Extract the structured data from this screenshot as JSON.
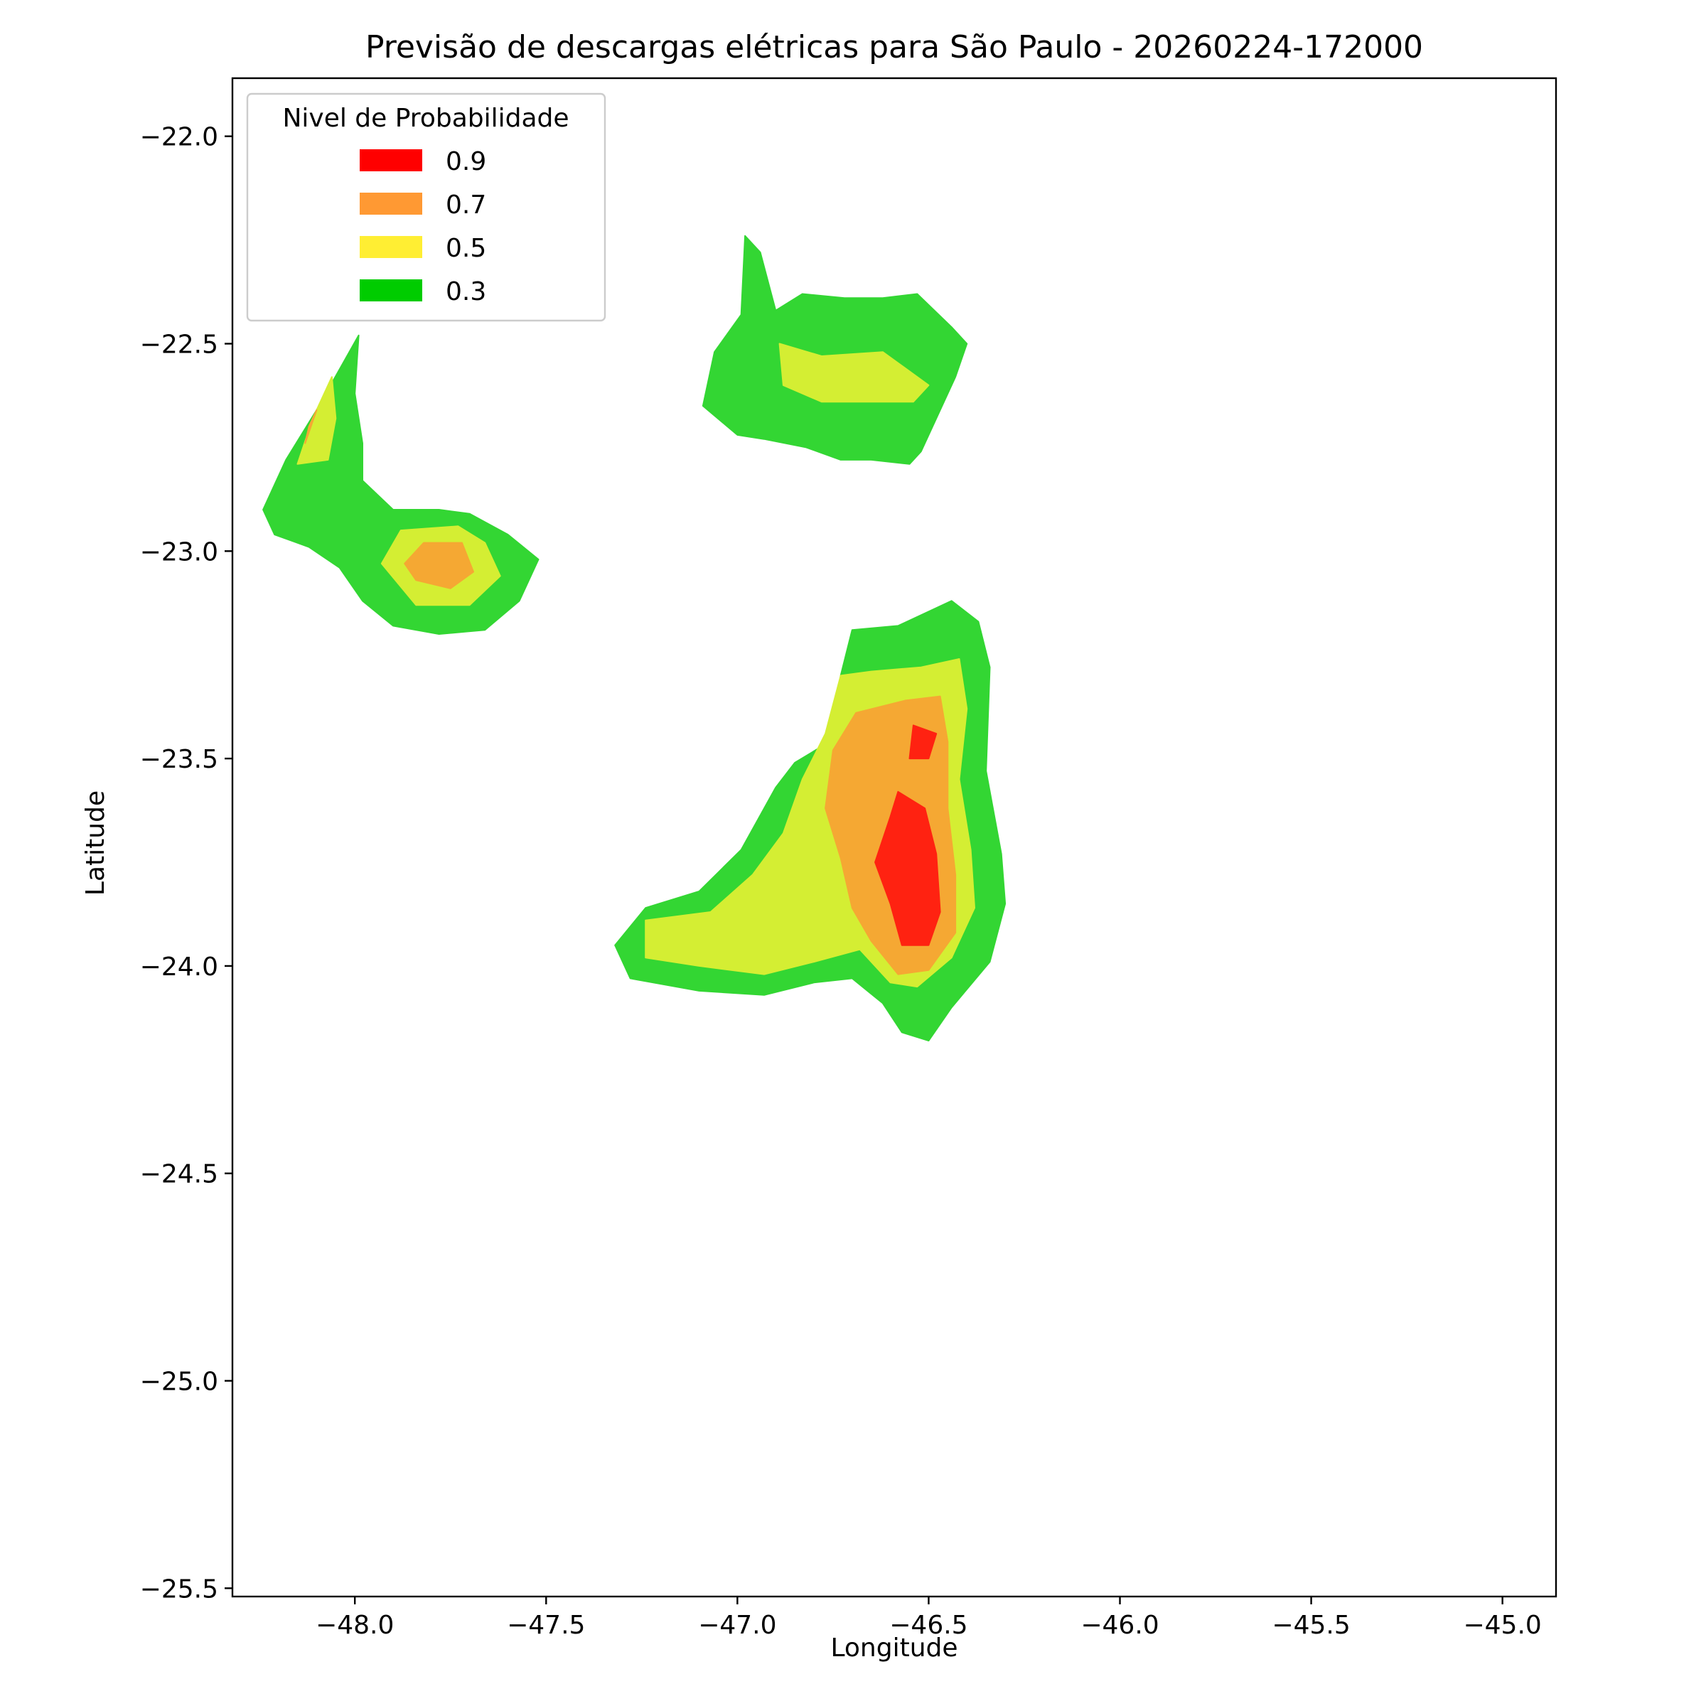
{
  "chart_data": {
    "type": "contour",
    "title": "Previsão de descargas elétricas para São Paulo - 20260224-172000",
    "xlabel": "Longitude",
    "ylabel": "Latitude",
    "xlim": [
      -48.32,
      -44.86
    ],
    "ylim": [
      -25.52,
      -21.86
    ],
    "xticks": [
      -48.0,
      -47.5,
      -47.0,
      -46.5,
      -46.0,
      -45.5,
      -45.0
    ],
    "xtick_labels": [
      "−48.0",
      "−47.5",
      "−47.0",
      "−46.5",
      "−46.0",
      "−45.5",
      "−45.0"
    ],
    "yticks": [
      -22.0,
      -22.5,
      -23.0,
      -23.5,
      -24.0,
      -24.5,
      -25.0,
      -25.5
    ],
    "ytick_labels": [
      "−22.0",
      "−22.5",
      "−23.0",
      "−23.5",
      "−24.0",
      "−24.5",
      "−25.0",
      "−25.5"
    ],
    "grid": false,
    "legend": {
      "title": "Nivel de Probabilidade",
      "placement": "upper-left",
      "entries": [
        {
          "label": "0.9",
          "color": "#ff0000"
        },
        {
          "label": "0.7",
          "color": "#ff9933"
        },
        {
          "label": "0.5",
          "color": "#ffee33"
        },
        {
          "label": "0.3",
          "color": "#00cc00"
        }
      ]
    },
    "fill_colors": {
      "0.3": "#33d633",
      "0.5": "#d4ee33",
      "0.7": "#f5a833",
      "0.9": "#ff2211"
    },
    "regions": [
      {
        "level": "0.3",
        "cell": "north-center",
        "polygon": [
          [
            -46.98,
            -22.24
          ],
          [
            -46.94,
            -22.28
          ],
          [
            -46.9,
            -22.42
          ],
          [
            -46.83,
            -22.38
          ],
          [
            -46.72,
            -22.39
          ],
          [
            -46.62,
            -22.39
          ],
          [
            -46.53,
            -22.38
          ],
          [
            -46.44,
            -22.46
          ],
          [
            -46.4,
            -22.5
          ],
          [
            -46.43,
            -22.58
          ],
          [
            -46.48,
            -22.68
          ],
          [
            -46.52,
            -22.76
          ],
          [
            -46.55,
            -22.79
          ],
          [
            -46.65,
            -22.78
          ],
          [
            -46.73,
            -22.78
          ],
          [
            -46.82,
            -22.75
          ],
          [
            -46.93,
            -22.73
          ],
          [
            -47.0,
            -22.72
          ],
          [
            -47.09,
            -22.65
          ],
          [
            -47.06,
            -22.52
          ],
          [
            -46.99,
            -22.43
          ],
          [
            -46.98,
            -22.24
          ]
        ]
      },
      {
        "level": "0.5",
        "cell": "north-center",
        "polygon": [
          [
            -46.89,
            -22.5
          ],
          [
            -46.78,
            -22.53
          ],
          [
            -46.62,
            -22.52
          ],
          [
            -46.5,
            -22.6
          ],
          [
            -46.54,
            -22.64
          ],
          [
            -46.66,
            -22.64
          ],
          [
            -46.78,
            -22.64
          ],
          [
            -46.88,
            -22.6
          ],
          [
            -46.89,
            -22.5
          ]
        ]
      },
      {
        "level": "0.3",
        "cell": "west",
        "polygon": [
          [
            -47.99,
            -22.48
          ],
          [
            -48.0,
            -22.62
          ],
          [
            -47.98,
            -22.74
          ],
          [
            -47.98,
            -22.83
          ],
          [
            -47.9,
            -22.9
          ],
          [
            -47.78,
            -22.9
          ],
          [
            -47.7,
            -22.91
          ],
          [
            -47.6,
            -22.96
          ],
          [
            -47.52,
            -23.02
          ],
          [
            -47.57,
            -23.12
          ],
          [
            -47.66,
            -23.19
          ],
          [
            -47.78,
            -23.2
          ],
          [
            -47.9,
            -23.18
          ],
          [
            -47.98,
            -23.12
          ],
          [
            -48.04,
            -23.04
          ],
          [
            -48.12,
            -22.99
          ],
          [
            -48.21,
            -22.96
          ],
          [
            -48.24,
            -22.9
          ],
          [
            -48.18,
            -22.78
          ],
          [
            -48.1,
            -22.66
          ],
          [
            -47.99,
            -22.48
          ]
        ]
      },
      {
        "level": "0.5",
        "cell": "west",
        "polygon": [
          [
            -48.06,
            -22.58
          ],
          [
            -48.11,
            -22.68
          ],
          [
            -48.15,
            -22.79
          ],
          [
            -48.07,
            -22.78
          ],
          [
            -48.05,
            -22.68
          ],
          [
            -48.06,
            -22.58
          ]
        ]
      },
      {
        "level": "0.5",
        "cell": "west",
        "polygon": [
          [
            -47.88,
            -22.95
          ],
          [
            -47.73,
            -22.94
          ],
          [
            -47.66,
            -22.98
          ],
          [
            -47.62,
            -23.06
          ],
          [
            -47.7,
            -23.13
          ],
          [
            -47.84,
            -23.13
          ],
          [
            -47.93,
            -23.03
          ],
          [
            -47.88,
            -22.95
          ]
        ]
      },
      {
        "level": "0.7",
        "cell": "west",
        "polygon": [
          [
            -48.1,
            -22.66
          ],
          [
            -48.13,
            -22.74
          ],
          [
            -48.12,
            -22.7
          ],
          [
            -48.1,
            -22.66
          ]
        ]
      },
      {
        "level": "0.7",
        "cell": "west",
        "polygon": [
          [
            -47.82,
            -22.98
          ],
          [
            -47.72,
            -22.98
          ],
          [
            -47.69,
            -23.05
          ],
          [
            -47.75,
            -23.09
          ],
          [
            -47.84,
            -23.07
          ],
          [
            -47.87,
            -23.03
          ],
          [
            -47.82,
            -22.98
          ]
        ]
      },
      {
        "level": "0.3",
        "cell": "south",
        "polygon": [
          [
            -46.44,
            -23.12
          ],
          [
            -46.37,
            -23.17
          ],
          [
            -46.34,
            -23.28
          ],
          [
            -46.35,
            -23.53
          ],
          [
            -46.31,
            -23.73
          ],
          [
            -46.3,
            -23.85
          ],
          [
            -46.34,
            -23.99
          ],
          [
            -46.44,
            -24.1
          ],
          [
            -46.5,
            -24.18
          ],
          [
            -46.57,
            -24.16
          ],
          [
            -46.62,
            -24.09
          ],
          [
            -46.7,
            -24.03
          ],
          [
            -46.8,
            -24.04
          ],
          [
            -46.93,
            -24.07
          ],
          [
            -47.1,
            -24.06
          ],
          [
            -47.28,
            -24.03
          ],
          [
            -47.32,
            -23.95
          ],
          [
            -47.24,
            -23.86
          ],
          [
            -47.1,
            -23.82
          ],
          [
            -46.99,
            -23.72
          ],
          [
            -46.9,
            -23.57
          ],
          [
            -46.85,
            -23.51
          ],
          [
            -46.76,
            -23.46
          ],
          [
            -46.73,
            -23.3
          ],
          [
            -46.7,
            -23.19
          ],
          [
            -46.58,
            -23.18
          ],
          [
            -46.44,
            -23.12
          ]
        ]
      },
      {
        "level": "0.5",
        "cell": "south",
        "polygon": [
          [
            -46.52,
            -23.28
          ],
          [
            -46.42,
            -23.26
          ],
          [
            -46.4,
            -23.38
          ],
          [
            -46.42,
            -23.55
          ],
          [
            -46.39,
            -23.72
          ],
          [
            -46.38,
            -23.86
          ],
          [
            -46.44,
            -23.98
          ],
          [
            -46.53,
            -24.05
          ],
          [
            -46.6,
            -24.04
          ],
          [
            -46.68,
            -23.96
          ],
          [
            -46.8,
            -23.99
          ],
          [
            -46.93,
            -24.02
          ],
          [
            -47.1,
            -24.0
          ],
          [
            -47.24,
            -23.98
          ],
          [
            -47.24,
            -23.89
          ],
          [
            -47.07,
            -23.87
          ],
          [
            -46.96,
            -23.78
          ],
          [
            -46.88,
            -23.68
          ],
          [
            -46.83,
            -23.55
          ],
          [
            -46.77,
            -23.44
          ],
          [
            -46.73,
            -23.3
          ],
          [
            -46.65,
            -23.29
          ],
          [
            -46.52,
            -23.28
          ]
        ]
      },
      {
        "level": "0.7",
        "cell": "south",
        "polygon": [
          [
            -46.56,
            -23.36
          ],
          [
            -46.47,
            -23.35
          ],
          [
            -46.45,
            -23.46
          ],
          [
            -46.45,
            -23.62
          ],
          [
            -46.43,
            -23.78
          ],
          [
            -46.43,
            -23.92
          ],
          [
            -46.5,
            -24.01
          ],
          [
            -46.58,
            -24.02
          ],
          [
            -46.65,
            -23.94
          ],
          [
            -46.7,
            -23.86
          ],
          [
            -46.73,
            -23.74
          ],
          [
            -46.77,
            -23.62
          ],
          [
            -46.75,
            -23.48
          ],
          [
            -46.69,
            -23.39
          ],
          [
            -46.56,
            -23.36
          ]
        ]
      },
      {
        "level": "0.9",
        "cell": "south",
        "polygon": [
          [
            -46.54,
            -23.42
          ],
          [
            -46.48,
            -23.44
          ],
          [
            -46.5,
            -23.5
          ],
          [
            -46.55,
            -23.5
          ],
          [
            -46.54,
            -23.42
          ]
        ]
      },
      {
        "level": "0.9",
        "cell": "south",
        "polygon": [
          [
            -46.58,
            -23.58
          ],
          [
            -46.51,
            -23.62
          ],
          [
            -46.48,
            -23.73
          ],
          [
            -46.47,
            -23.87
          ],
          [
            -46.5,
            -23.95
          ],
          [
            -46.57,
            -23.95
          ],
          [
            -46.6,
            -23.85
          ],
          [
            -46.64,
            -23.75
          ],
          [
            -46.6,
            -23.64
          ],
          [
            -46.58,
            -23.58
          ]
        ]
      }
    ]
  }
}
